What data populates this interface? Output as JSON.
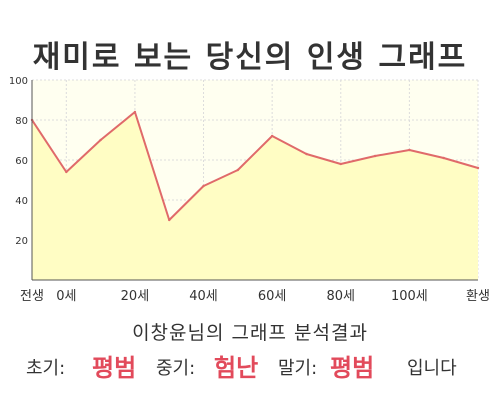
{
  "title": "재미로 보는 당신의 인생 그래프",
  "subtitle": "이창윤님의 그래프 분석결과",
  "result": {
    "early_label": "초기:",
    "early_value": "평범",
    "mid_label": "중기:",
    "mid_value": "험난",
    "late_label": "말기:",
    "late_value": "평범",
    "ending": "입니다"
  },
  "colors": {
    "line": "#e06a6a",
    "fill": "#fffdc4",
    "highlight": "#e24a5b",
    "plot_bg": "#fffff0",
    "grid": "#dcdcdc"
  },
  "chart_data": {
    "type": "area",
    "x": [
      -10,
      0,
      10,
      20,
      30,
      40,
      50,
      60,
      70,
      80,
      90,
      100,
      110,
      120
    ],
    "values": [
      80,
      54,
      70,
      84,
      30,
      47,
      55,
      72,
      63,
      58,
      62,
      65,
      61,
      56
    ],
    "xlim": [
      -10,
      120
    ],
    "ylim": [
      0,
      100
    ],
    "yticks": [
      20,
      40,
      60,
      80,
      100
    ],
    "xtick_labels": [
      {
        "x": -10,
        "label": "전생"
      },
      {
        "x": 0,
        "label": "0세"
      },
      {
        "x": 20,
        "label": "20세"
      },
      {
        "x": 40,
        "label": "40세"
      },
      {
        "x": 60,
        "label": "60세"
      },
      {
        "x": 80,
        "label": "80세"
      },
      {
        "x": 100,
        "label": "100세"
      },
      {
        "x": 120,
        "label": "환생"
      }
    ],
    "grid": true
  }
}
